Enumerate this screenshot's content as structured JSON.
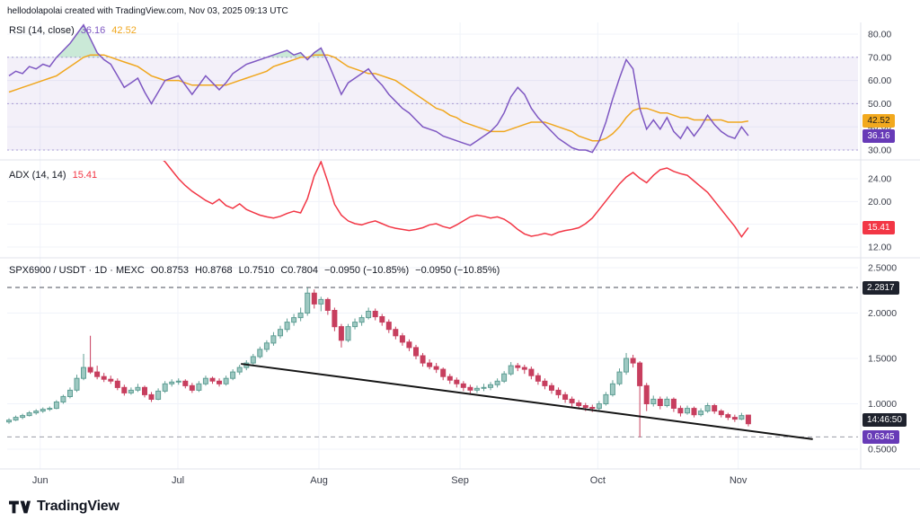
{
  "watermark": "hellodolapolai created with TradingView.com, Nov 03, 2025 09:13 UTC",
  "rsi_panel": {
    "title": "RSI (14, close)",
    "value": "36.16",
    "ma_value": "42.52",
    "axis_labels": [
      "80.00",
      "70.00",
      "60.00",
      "50.00",
      "40.00",
      "30.00"
    ],
    "ma_badge": "42.52",
    "value_badge": "36.16"
  },
  "adx_panel": {
    "title": "ADX (14, 14)",
    "value": "15.41",
    "axis_labels": [
      "24.00",
      "20.00",
      "16.00",
      "12.00"
    ],
    "value_badge": "15.41"
  },
  "price_panel": {
    "symbol_line": "SPX6900 / USDT · 1D · MEXC",
    "open": "O0.8753",
    "high": "H0.8768",
    "low": "L0.7510",
    "close": "C0.7804",
    "change": "−0.0950 (−10.85%)",
    "change_2": "−0.0950 (−10.85%)",
    "axis_labels": [
      "2.5000",
      "2.0000",
      "1.5000",
      "1.0000",
      "0.5000"
    ],
    "high_badge": "2.2817",
    "countdown_badge": "14:46:50",
    "level_badge": "0.6345"
  },
  "x_axis": {
    "labels": [
      "Jun",
      "Jul",
      "Aug",
      "Sep",
      "Oct",
      "Nov"
    ]
  },
  "footer": {
    "brand": "TradingView"
  },
  "colors": {
    "up": "#9ec9c2",
    "up_border": "#5f9e94",
    "down": "#c73e5e",
    "rsi": "#7e57c2",
    "rsi_ma": "#f0a71f",
    "rsi_band_fill": "rgba(126,87,194,0.09)",
    "rsi_band_line": "#aa9cd4",
    "overbought_fill": "rgba(104,192,140,0.35)",
    "adx": "#f23645",
    "grid": "#f0f3fa",
    "separator": "#e0e3eb",
    "axis_text": "#3a3e4a",
    "trendline": "#141414",
    "ath_line": "#4a4e59",
    "level_line": "#9a9ca6",
    "badge_ma_bg": "#f2a91e",
    "badge_purple_bg": "#673ab7",
    "badge_red_bg": "#f23645",
    "badge_black_bg": "#1e222d"
  },
  "chart_data": [
    {
      "type": "line",
      "title": "RSI (14, close)",
      "panel": "rsi",
      "ylim": [
        25,
        85
      ],
      "levels": [
        70,
        50,
        30
      ],
      "legend_position": "top-left",
      "series": [
        {
          "name": "RSI",
          "color_key": "rsi",
          "last": 36.16,
          "values": [
            62,
            64,
            63,
            66,
            65,
            67,
            66,
            70,
            73,
            76,
            80,
            84,
            78,
            72,
            69,
            67,
            62,
            57,
            59,
            61,
            55,
            50,
            55,
            60,
            61,
            62,
            58,
            54,
            58,
            62,
            59,
            56,
            59,
            63,
            65,
            67,
            68,
            69,
            70,
            71,
            72,
            73,
            71,
            72,
            69,
            72,
            74,
            68,
            61,
            54,
            59,
            61,
            63,
            65,
            61,
            58,
            54,
            51,
            48,
            46,
            43,
            40,
            39,
            38,
            36,
            35,
            34,
            33,
            32,
            34,
            36,
            38,
            41,
            46,
            53,
            57,
            54,
            48,
            44,
            41,
            38,
            35,
            33,
            31,
            30,
            30,
            29,
            34,
            42,
            52,
            61,
            69,
            65,
            48,
            39,
            43,
            39,
            44,
            38,
            35,
            40,
            36,
            40,
            45,
            41,
            38,
            36,
            35,
            40,
            36.16
          ]
        },
        {
          "name": "RSI-based MA",
          "color_key": "rsi_ma",
          "last": 42.52,
          "values": [
            55,
            56,
            57,
            58,
            59,
            60,
            61,
            62,
            64,
            66,
            68,
            70,
            71,
            71,
            71,
            70,
            69,
            68,
            67,
            66,
            64,
            62,
            61,
            60,
            60,
            60,
            59,
            58,
            58,
            58,
            58,
            58,
            58,
            59,
            60,
            61,
            62,
            63,
            64,
            66,
            67,
            68,
            69,
            70,
            70,
            71,
            71,
            71,
            70,
            68,
            66,
            65,
            64,
            63,
            63,
            62,
            61,
            60,
            58,
            56,
            54,
            52,
            50,
            48,
            47,
            45,
            44,
            42,
            41,
            40,
            39,
            38,
            38,
            38,
            39,
            40,
            41,
            42,
            42,
            42,
            41,
            40,
            39,
            38,
            36,
            35,
            34,
            34,
            35,
            37,
            40,
            44,
            47,
            48,
            48,
            47,
            46,
            46,
            45,
            44,
            44,
            43,
            43,
            43,
            43,
            43,
            42,
            42,
            42,
            42.52
          ]
        }
      ]
    },
    {
      "type": "line",
      "title": "ADX (14, 14)",
      "panel": "adx",
      "ylim": [
        11,
        28
      ],
      "series": [
        {
          "name": "ADX",
          "color_key": "adx",
          "last": 15.41,
          "values": [
            null,
            null,
            null,
            null,
            null,
            null,
            null,
            null,
            null,
            null,
            null,
            null,
            null,
            null,
            null,
            null,
            null,
            null,
            null,
            null,
            null,
            null,
            28.0,
            27.0,
            25.5,
            24.0,
            22.8,
            21.8,
            21.0,
            20.2,
            19.6,
            20.4,
            19.3,
            18.8,
            19.6,
            18.6,
            18.1,
            17.6,
            17.3,
            17.1,
            17.4,
            17.9,
            18.3,
            18.0,
            20.5,
            24.5,
            27.0,
            23.5,
            19.5,
            17.6,
            16.6,
            16.1,
            15.9,
            16.3,
            16.6,
            16.1,
            15.6,
            15.3,
            15.1,
            14.9,
            15.1,
            15.4,
            15.9,
            16.1,
            15.6,
            15.3,
            15.9,
            16.6,
            17.3,
            17.6,
            17.4,
            17.1,
            17.3,
            16.9,
            16.1,
            15.1,
            14.3,
            13.9,
            14.1,
            14.4,
            14.1,
            14.6,
            14.9,
            15.1,
            15.4,
            16.1,
            17.1,
            18.6,
            20.1,
            21.6,
            23.1,
            24.3,
            25.1,
            24.1,
            23.3,
            24.6,
            25.6,
            25.9,
            25.3,
            24.9,
            24.6,
            23.6,
            22.6,
            21.6,
            20.1,
            18.6,
            17.1,
            15.6,
            13.8,
            15.41
          ]
        }
      ]
    },
    {
      "type": "candlestick",
      "title": "SPX6900 / USDT · 1D · MEXC",
      "panel": "price",
      "ylim": [
        0.28,
        2.61
      ],
      "ohlc_format": "[open, high, low, close]",
      "candles": [
        [
          0.8,
          0.84,
          0.78,
          0.82
        ],
        [
          0.82,
          0.87,
          0.81,
          0.85
        ],
        [
          0.85,
          0.89,
          0.83,
          0.87
        ],
        [
          0.87,
          0.92,
          0.86,
          0.9
        ],
        [
          0.9,
          0.94,
          0.88,
          0.92
        ],
        [
          0.92,
          0.96,
          0.9,
          0.94
        ],
        [
          0.94,
          0.97,
          0.92,
          0.95
        ],
        [
          0.95,
          1.04,
          0.94,
          1.02
        ],
        [
          1.02,
          1.1,
          1.0,
          1.08
        ],
        [
          1.08,
          1.18,
          1.06,
          1.15
        ],
        [
          1.15,
          1.32,
          1.13,
          1.28
        ],
        [
          1.28,
          1.55,
          1.26,
          1.4
        ],
        [
          1.4,
          1.75,
          1.33,
          1.35
        ],
        [
          1.35,
          1.42,
          1.27,
          1.3
        ],
        [
          1.3,
          1.34,
          1.24,
          1.27
        ],
        [
          1.27,
          1.31,
          1.22,
          1.25
        ],
        [
          1.25,
          1.28,
          1.15,
          1.18
        ],
        [
          1.18,
          1.21,
          1.09,
          1.12
        ],
        [
          1.12,
          1.18,
          1.1,
          1.15
        ],
        [
          1.15,
          1.22,
          1.13,
          1.18
        ],
        [
          1.18,
          1.2,
          1.07,
          1.1
        ],
        [
          1.1,
          1.13,
          1.02,
          1.05
        ],
        [
          1.05,
          1.17,
          1.04,
          1.14
        ],
        [
          1.14,
          1.25,
          1.12,
          1.22
        ],
        [
          1.22,
          1.27,
          1.19,
          1.24
        ],
        [
          1.24,
          1.28,
          1.21,
          1.25
        ],
        [
          1.25,
          1.27,
          1.17,
          1.2
        ],
        [
          1.2,
          1.23,
          1.12,
          1.15
        ],
        [
          1.15,
          1.25,
          1.13,
          1.22
        ],
        [
          1.22,
          1.31,
          1.2,
          1.28
        ],
        [
          1.28,
          1.3,
          1.22,
          1.25
        ],
        [
          1.25,
          1.28,
          1.19,
          1.22
        ],
        [
          1.22,
          1.31,
          1.2,
          1.28
        ],
        [
          1.28,
          1.38,
          1.26,
          1.35
        ],
        [
          1.35,
          1.43,
          1.32,
          1.4
        ],
        [
          1.4,
          1.48,
          1.37,
          1.45
        ],
        [
          1.45,
          1.55,
          1.43,
          1.52
        ],
        [
          1.52,
          1.63,
          1.5,
          1.6
        ],
        [
          1.6,
          1.7,
          1.57,
          1.67
        ],
        [
          1.67,
          1.79,
          1.64,
          1.75
        ],
        [
          1.75,
          1.86,
          1.72,
          1.82
        ],
        [
          1.82,
          1.94,
          1.79,
          1.9
        ],
        [
          1.9,
          1.99,
          1.86,
          1.95
        ],
        [
          1.95,
          2.06,
          1.91,
          2.0
        ],
        [
          2.0,
          2.28,
          1.97,
          2.22
        ],
        [
          2.22,
          2.26,
          2.05,
          2.1
        ],
        [
          2.1,
          2.18,
          2.02,
          2.15
        ],
        [
          2.15,
          2.17,
          1.98,
          2.03
        ],
        [
          2.03,
          2.06,
          1.8,
          1.85
        ],
        [
          1.85,
          1.88,
          1.62,
          1.7
        ],
        [
          1.7,
          1.88,
          1.68,
          1.85
        ],
        [
          1.85,
          1.94,
          1.82,
          1.9
        ],
        [
          1.9,
          1.98,
          1.86,
          1.95
        ],
        [
          1.95,
          2.06,
          1.93,
          2.02
        ],
        [
          2.02,
          2.05,
          1.92,
          1.96
        ],
        [
          1.96,
          1.99,
          1.86,
          1.9
        ],
        [
          1.9,
          1.93,
          1.78,
          1.82
        ],
        [
          1.82,
          1.85,
          1.71,
          1.75
        ],
        [
          1.75,
          1.78,
          1.64,
          1.68
        ],
        [
          1.68,
          1.71,
          1.58,
          1.62
        ],
        [
          1.62,
          1.65,
          1.49,
          1.53
        ],
        [
          1.53,
          1.56,
          1.41,
          1.45
        ],
        [
          1.45,
          1.49,
          1.38,
          1.41
        ],
        [
          1.41,
          1.45,
          1.34,
          1.38
        ],
        [
          1.38,
          1.4,
          1.26,
          1.3
        ],
        [
          1.3,
          1.33,
          1.22,
          1.26
        ],
        [
          1.26,
          1.29,
          1.18,
          1.22
        ],
        [
          1.22,
          1.25,
          1.14,
          1.18
        ],
        [
          1.18,
          1.21,
          1.11,
          1.15
        ],
        [
          1.15,
          1.2,
          1.12,
          1.17
        ],
        [
          1.17,
          1.22,
          1.14,
          1.18
        ],
        [
          1.18,
          1.24,
          1.15,
          1.21
        ],
        [
          1.21,
          1.28,
          1.18,
          1.25
        ],
        [
          1.25,
          1.36,
          1.23,
          1.33
        ],
        [
          1.33,
          1.46,
          1.31,
          1.42
        ],
        [
          1.42,
          1.45,
          1.36,
          1.4
        ],
        [
          1.4,
          1.43,
          1.33,
          1.38
        ],
        [
          1.38,
          1.41,
          1.27,
          1.31
        ],
        [
          1.31,
          1.34,
          1.21,
          1.25
        ],
        [
          1.25,
          1.28,
          1.16,
          1.2
        ],
        [
          1.2,
          1.23,
          1.11,
          1.15
        ],
        [
          1.15,
          1.18,
          1.06,
          1.1
        ],
        [
          1.1,
          1.13,
          1.01,
          1.05
        ],
        [
          1.05,
          1.08,
          0.97,
          1.01
        ],
        [
          1.01,
          1.04,
          0.94,
          0.98
        ],
        [
          0.98,
          1.01,
          0.92,
          0.96
        ],
        [
          0.96,
          0.99,
          0.91,
          0.95
        ],
        [
          0.95,
          1.03,
          0.93,
          1.0
        ],
        [
          1.0,
          1.13,
          0.98,
          1.1
        ],
        [
          1.1,
          1.26,
          1.08,
          1.22
        ],
        [
          1.22,
          1.39,
          1.2,
          1.35
        ],
        [
          1.35,
          1.56,
          1.32,
          1.5
        ],
        [
          1.5,
          1.54,
          1.4,
          1.45
        ],
        [
          1.45,
          1.47,
          0.63,
          1.2
        ],
        [
          1.2,
          1.23,
          0.92,
          1.0
        ],
        [
          1.0,
          1.09,
          0.97,
          1.05
        ],
        [
          1.05,
          1.08,
          0.94,
          0.98
        ],
        [
          0.98,
          1.08,
          0.96,
          1.05
        ],
        [
          1.05,
          1.07,
          0.91,
          0.95
        ],
        [
          0.95,
          0.98,
          0.86,
          0.9
        ],
        [
          0.9,
          0.98,
          0.88,
          0.95
        ],
        [
          0.95,
          0.97,
          0.85,
          0.88
        ],
        [
          0.88,
          0.95,
          0.86,
          0.92
        ],
        [
          0.92,
          1.01,
          0.9,
          0.98
        ],
        [
          0.98,
          1.0,
          0.89,
          0.92
        ],
        [
          0.92,
          0.94,
          0.85,
          0.88
        ],
        [
          0.88,
          0.9,
          0.82,
          0.85
        ],
        [
          0.85,
          0.88,
          0.8,
          0.83
        ],
        [
          0.83,
          0.9,
          0.82,
          0.87
        ],
        [
          0.8753,
          0.8768,
          0.751,
          0.7804
        ]
      ],
      "levels": [
        {
          "value": 2.2817,
          "style": "dashed",
          "color_key": "ath_line"
        },
        {
          "value": 0.6345,
          "style": "dashed",
          "color_key": "level_line"
        }
      ],
      "trendline": {
        "i1": 34.2,
        "v1": 1.44,
        "i2": 118.5,
        "v2": 0.61
      },
      "month_ticks": [
        {
          "label": "Jun",
          "i": 4.6
        },
        {
          "label": "Jul",
          "i": 24.9
        },
        {
          "label": "Aug",
          "i": 45.7
        },
        {
          "label": "Sep",
          "i": 66.5
        },
        {
          "label": "Oct",
          "i": 86.8
        },
        {
          "label": "Nov",
          "i": 107.5
        }
      ]
    }
  ]
}
